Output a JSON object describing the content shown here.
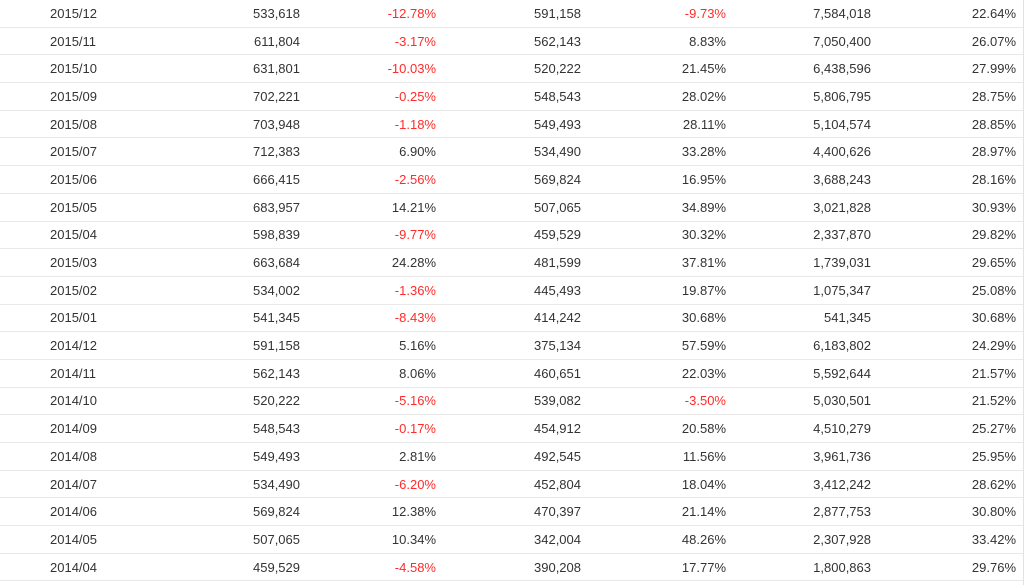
{
  "colors": {
    "negative": "#ff2a2a",
    "text": "#333333",
    "row_border": "#e8e8e8"
  },
  "rows": [
    [
      "2015/12",
      "533,618",
      "-12.78%",
      "591,158",
      "-9.73%",
      "7,584,018",
      "22.64%"
    ],
    [
      "2015/11",
      "611,804",
      "-3.17%",
      "562,143",
      "8.83%",
      "7,050,400",
      "26.07%"
    ],
    [
      "2015/10",
      "631,801",
      "-10.03%",
      "520,222",
      "21.45%",
      "6,438,596",
      "27.99%"
    ],
    [
      "2015/09",
      "702,221",
      "-0.25%",
      "548,543",
      "28.02%",
      "5,806,795",
      "28.75%"
    ],
    [
      "2015/08",
      "703,948",
      "-1.18%",
      "549,493",
      "28.11%",
      "5,104,574",
      "28.85%"
    ],
    [
      "2015/07",
      "712,383",
      "6.90%",
      "534,490",
      "33.28%",
      "4,400,626",
      "28.97%"
    ],
    [
      "2015/06",
      "666,415",
      "-2.56%",
      "569,824",
      "16.95%",
      "3,688,243",
      "28.16%"
    ],
    [
      "2015/05",
      "683,957",
      "14.21%",
      "507,065",
      "34.89%",
      "3,021,828",
      "30.93%"
    ],
    [
      "2015/04",
      "598,839",
      "-9.77%",
      "459,529",
      "30.32%",
      "2,337,870",
      "29.82%"
    ],
    [
      "2015/03",
      "663,684",
      "24.28%",
      "481,599",
      "37.81%",
      "1,739,031",
      "29.65%"
    ],
    [
      "2015/02",
      "534,002",
      "-1.36%",
      "445,493",
      "19.87%",
      "1,075,347",
      "25.08%"
    ],
    [
      "2015/01",
      "541,345",
      "-8.43%",
      "414,242",
      "30.68%",
      "541,345",
      "30.68%"
    ],
    [
      "2014/12",
      "591,158",
      "5.16%",
      "375,134",
      "57.59%",
      "6,183,802",
      "24.29%"
    ],
    [
      "2014/11",
      "562,143",
      "8.06%",
      "460,651",
      "22.03%",
      "5,592,644",
      "21.57%"
    ],
    [
      "2014/10",
      "520,222",
      "-5.16%",
      "539,082",
      "-3.50%",
      "5,030,501",
      "21.52%"
    ],
    [
      "2014/09",
      "548,543",
      "-0.17%",
      "454,912",
      "20.58%",
      "4,510,279",
      "25.27%"
    ],
    [
      "2014/08",
      "549,493",
      "2.81%",
      "492,545",
      "11.56%",
      "3,961,736",
      "25.95%"
    ],
    [
      "2014/07",
      "534,490",
      "-6.20%",
      "452,804",
      "18.04%",
      "3,412,242",
      "28.62%"
    ],
    [
      "2014/06",
      "569,824",
      "12.38%",
      "470,397",
      "21.14%",
      "2,877,753",
      "30.80%"
    ],
    [
      "2014/05",
      "507,065",
      "10.34%",
      "342,004",
      "48.26%",
      "2,307,928",
      "33.42%"
    ],
    [
      "2014/04",
      "459,529",
      "-4.58%",
      "390,208",
      "17.77%",
      "1,800,863",
      "29.76%"
    ]
  ]
}
